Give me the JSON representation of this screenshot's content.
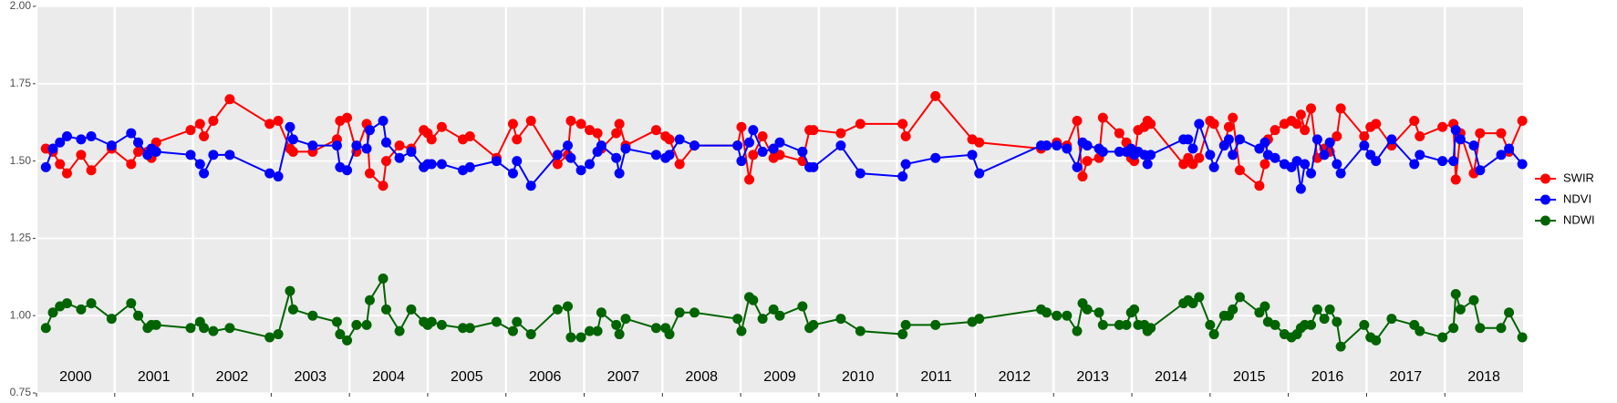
{
  "chart_data": {
    "type": "line",
    "x": [
      2000.12,
      2000.21,
      2000.3,
      2000.39,
      2000.57,
      2000.7,
      2000.96,
      2001.21,
      2001.3,
      2001.42,
      2001.47,
      2001.53,
      2001.97,
      2002.09,
      2002.14,
      2002.26,
      2002.47,
      2002.98,
      2003.09,
      2003.24,
      2003.28,
      2003.53,
      2003.84,
      2003.88,
      2003.97,
      2004.09,
      2004.22,
      2004.26,
      2004.43,
      2004.47,
      2004.64,
      2004.79,
      2004.95,
      2005.0,
      2005.05,
      2005.18,
      2005.45,
      2005.54,
      2005.88,
      2006.09,
      2006.14,
      2006.32,
      2006.66,
      2006.79,
      2006.83,
      2006.96,
      2007.07,
      2007.17,
      2007.22,
      2007.41,
      2007.45,
      2007.53,
      2007.92,
      2008.04,
      2008.09,
      2008.22,
      2008.41,
      2008.96,
      2009.01,
      2009.11,
      2009.16,
      2009.28,
      2009.42,
      2009.5,
      2009.79,
      2009.88,
      2009.93,
      2010.28,
      2010.53,
      2011.07,
      2011.11,
      2011.49,
      2011.96,
      2012.05,
      2012.84,
      2012.91,
      2013.04,
      2013.17,
      2013.3,
      2013.37,
      2013.43,
      2013.58,
      2013.63,
      2013.84,
      2013.93,
      2013.99,
      2014.03,
      2014.08,
      2014.16,
      2014.2,
      2014.24,
      2014.66,
      2014.72,
      2014.78,
      2014.86,
      2015.0,
      2015.05,
      2015.18,
      2015.24,
      2015.29,
      2015.38,
      2015.63,
      2015.7,
      2015.74,
      2015.83,
      2015.95,
      2016.04,
      2016.11,
      2016.16,
      2016.21,
      2016.29,
      2016.37,
      2016.46,
      2016.53,
      2016.62,
      2016.67,
      2016.97,
      2017.05,
      2017.12,
      2017.32,
      2017.61,
      2017.68,
      2017.97,
      2018.11,
      2018.14,
      2018.2,
      2018.37,
      2018.45,
      2018.72,
      2018.82,
      2018.99
    ],
    "series": [
      {
        "name": "SWIR",
        "color": "#ff0000",
        "values": [
          1.54,
          1.53,
          1.49,
          1.46,
          1.52,
          1.47,
          1.54,
          1.49,
          1.53,
          1.53,
          1.51,
          1.56,
          1.6,
          1.62,
          1.58,
          1.63,
          1.7,
          1.62,
          1.63,
          1.54,
          1.53,
          1.53,
          1.57,
          1.63,
          1.64,
          1.53,
          1.62,
          1.46,
          1.42,
          1.5,
          1.55,
          1.54,
          1.6,
          1.59,
          1.57,
          1.61,
          1.57,
          1.58,
          1.51,
          1.62,
          1.57,
          1.63,
          1.49,
          1.52,
          1.63,
          1.62,
          1.6,
          1.59,
          1.54,
          1.59,
          1.62,
          1.55,
          1.6,
          1.58,
          1.57,
          1.49,
          1.55,
          1.55,
          1.61,
          1.44,
          1.52,
          1.58,
          1.51,
          1.52,
          1.5,
          1.6,
          1.6,
          1.59,
          1.62,
          1.62,
          1.58,
          1.71,
          1.57,
          1.56,
          1.54,
          1.55,
          1.56,
          1.55,
          1.63,
          1.45,
          1.5,
          1.51,
          1.64,
          1.59,
          1.56,
          1.51,
          1.5,
          1.6,
          1.61,
          1.63,
          1.62,
          1.49,
          1.51,
          1.49,
          1.51,
          1.63,
          1.62,
          1.55,
          1.61,
          1.64,
          1.47,
          1.42,
          1.49,
          1.57,
          1.6,
          1.62,
          1.63,
          1.62,
          1.65,
          1.6,
          1.67,
          1.51,
          1.54,
          1.53,
          1.58,
          1.67,
          1.58,
          1.61,
          1.62,
          1.55,
          1.63,
          1.58,
          1.61,
          1.62,
          1.44,
          1.59,
          1.46,
          1.59,
          1.59,
          1.53,
          1.63
        ]
      },
      {
        "name": "NDVI",
        "color": "#0000ff",
        "values": [
          1.48,
          1.54,
          1.56,
          1.58,
          1.57,
          1.58,
          1.55,
          1.59,
          1.56,
          1.52,
          1.54,
          1.53,
          1.52,
          1.49,
          1.46,
          1.52,
          1.52,
          1.46,
          1.45,
          1.61,
          1.57,
          1.55,
          1.55,
          1.48,
          1.47,
          1.55,
          1.54,
          1.6,
          1.63,
          1.56,
          1.51,
          1.53,
          1.48,
          1.49,
          1.49,
          1.49,
          1.47,
          1.48,
          1.5,
          1.46,
          1.5,
          1.42,
          1.52,
          1.55,
          1.51,
          1.47,
          1.49,
          1.53,
          1.55,
          1.51,
          1.46,
          1.54,
          1.52,
          1.51,
          1.52,
          1.57,
          1.55,
          1.55,
          1.5,
          1.56,
          1.6,
          1.53,
          1.54,
          1.56,
          1.53,
          1.48,
          1.48,
          1.55,
          1.46,
          1.45,
          1.49,
          1.51,
          1.52,
          1.46,
          1.55,
          1.55,
          1.55,
          1.54,
          1.48,
          1.56,
          1.55,
          1.54,
          1.53,
          1.53,
          1.53,
          1.54,
          1.52,
          1.53,
          1.52,
          1.49,
          1.52,
          1.57,
          1.57,
          1.54,
          1.62,
          1.52,
          1.48,
          1.55,
          1.57,
          1.52,
          1.57,
          1.54,
          1.56,
          1.52,
          1.51,
          1.49,
          1.48,
          1.5,
          1.41,
          1.49,
          1.46,
          1.57,
          1.52,
          1.56,
          1.49,
          1.46,
          1.55,
          1.52,
          1.5,
          1.57,
          1.49,
          1.52,
          1.5,
          1.5,
          1.6,
          1.57,
          1.55,
          1.47,
          1.52,
          1.54,
          1.49
        ]
      },
      {
        "name": "NDWI",
        "color": "#006400",
        "values": [
          0.96,
          1.01,
          1.03,
          1.04,
          1.02,
          1.04,
          0.99,
          1.04,
          1.0,
          0.96,
          0.97,
          0.97,
          0.96,
          0.98,
          0.96,
          0.95,
          0.96,
          0.93,
          0.94,
          1.08,
          1.02,
          1.0,
          0.98,
          0.94,
          0.92,
          0.97,
          0.97,
          1.05,
          1.12,
          1.02,
          0.95,
          1.02,
          0.98,
          0.97,
          0.98,
          0.97,
          0.96,
          0.96,
          0.98,
          0.95,
          0.98,
          0.94,
          1.02,
          1.03,
          0.93,
          0.93,
          0.95,
          0.95,
          1.01,
          0.97,
          0.94,
          0.99,
          0.96,
          0.96,
          0.94,
          1.01,
          1.01,
          0.99,
          0.95,
          1.06,
          1.05,
          0.99,
          1.02,
          1.0,
          1.03,
          0.96,
          0.97,
          0.99,
          0.95,
          0.94,
          0.97,
          0.97,
          0.98,
          0.99,
          1.02,
          1.01,
          1.0,
          1.0,
          0.95,
          1.04,
          1.02,
          1.01,
          0.97,
          0.97,
          0.97,
          1.01,
          1.02,
          0.97,
          0.97,
          0.95,
          0.96,
          1.04,
          1.05,
          1.04,
          1.06,
          0.97,
          0.94,
          1.0,
          1.0,
          1.02,
          1.06,
          1.01,
          1.03,
          0.98,
          0.97,
          0.94,
          0.93,
          0.94,
          0.96,
          0.97,
          0.97,
          1.02,
          0.99,
          1.02,
          0.98,
          0.9,
          0.97,
          0.93,
          0.92,
          0.99,
          0.97,
          0.95,
          0.93,
          0.96,
          1.07,
          1.02,
          1.05,
          0.96,
          0.96,
          1.01,
          0.93
        ]
      }
    ],
    "xlim": [
      2000,
      2019
    ],
    "xticks": [
      2000,
      2001,
      2002,
      2003,
      2004,
      2005,
      2006,
      2007,
      2008,
      2009,
      2010,
      2011,
      2012,
      2013,
      2014,
      2015,
      2016,
      2017,
      2018
    ],
    "ylim": [
      0.75,
      2.0
    ],
    "yticks": [
      0.75,
      {
        "value": 1.0,
        "label": "1.00"
      },
      1.25,
      {
        "value": 1.5,
        "label": "1.50"
      },
      1.75,
      {
        "value": 2.0,
        "label": "2.00"
      }
    ],
    "grid": true,
    "legend": "right"
  }
}
